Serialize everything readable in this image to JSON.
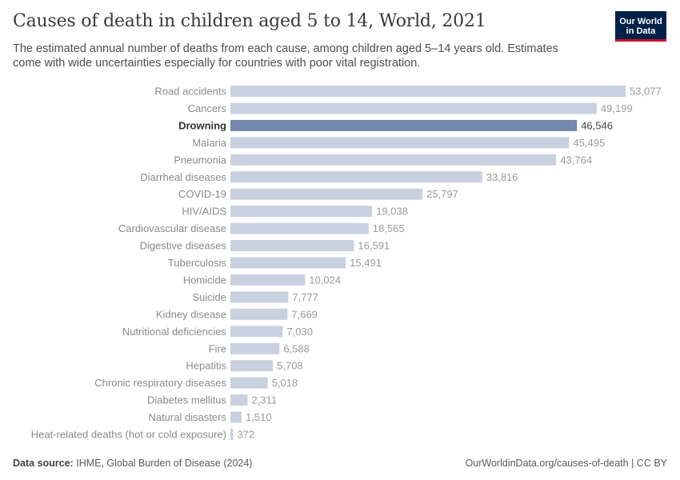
{
  "header": {
    "title": "Causes of death in children aged 5 to 14, World, 2021",
    "subtitle": "The estimated annual number of deaths from each cause, among children aged 5–14 years old. Estimates come with wide uncertainties especially for countries with poor vital registration.",
    "logo_line1": "Our World",
    "logo_line2": "in Data"
  },
  "footer": {
    "source_label": "Data source:",
    "source_text": "IHME, Global Burden of Disease (2024)",
    "url": "OurWorldinData.org/causes-of-death | CC BY"
  },
  "colors": {
    "bar": "#c9d1e0",
    "highlight_bar": "#7487ad",
    "label": "#8a8a8a",
    "highlight_label": "#333333",
    "value": "#9a9a9a",
    "highlight_value": "#444444"
  },
  "chart_data": {
    "type": "bar",
    "orientation": "horizontal",
    "highlighted": "Drowning",
    "categories": [
      "Road accidents",
      "Cancers",
      "Drowning",
      "Malaria",
      "Pneumonia",
      "Diarrheal diseases",
      "COVID-19",
      "HIV/AIDS",
      "Cardiovascular disease",
      "Digestive diseases",
      "Tuberculosis",
      "Homicide",
      "Suicide",
      "Kidney disease",
      "Nutritional deficiencies",
      "Fire",
      "Hepatitis",
      "Chronic respiratory diseases",
      "Diabetes mellitus",
      "Natural disasters",
      "Heat-related deaths (hot or cold exposure)"
    ],
    "values": [
      53077,
      49199,
      46546,
      45495,
      43764,
      33816,
      25797,
      19038,
      18565,
      16591,
      15491,
      10024,
      7777,
      7669,
      7030,
      6588,
      5708,
      5018,
      2311,
      1510,
      372
    ],
    "value_labels": [
      "53,077",
      "49,199",
      "46,546",
      "45,495",
      "43,764",
      "33,816",
      "25,797",
      "19,038",
      "18,565",
      "16,591",
      "15,491",
      "10,024",
      "7,777",
      "7,669",
      "7,030",
      "6,588",
      "5,708",
      "5,018",
      "2,311",
      "1,510",
      "372"
    ]
  }
}
